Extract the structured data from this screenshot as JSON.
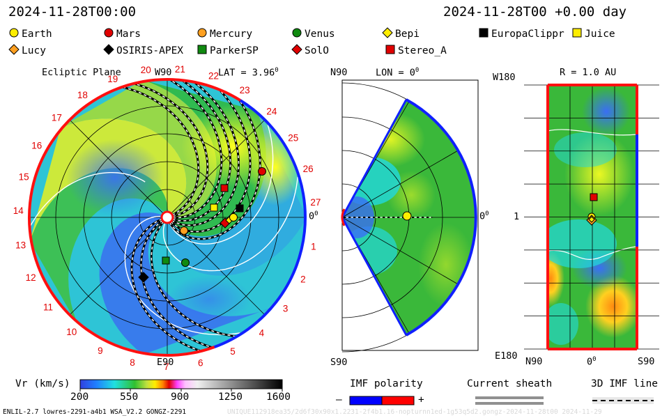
{
  "header": {
    "date_left": "2024-11-28T00:00",
    "date_right": "2024-11-28T00 +0.00 day"
  },
  "legend": [
    {
      "name": "Earth",
      "shape": "circle",
      "color": "#ffee00"
    },
    {
      "name": "Mars",
      "shape": "circle",
      "color": "#e00000"
    },
    {
      "name": "Mercury",
      "shape": "circle",
      "color": "#ffa020"
    },
    {
      "name": "Venus",
      "shape": "circle",
      "color": "#108a10"
    },
    {
      "name": "Bepi",
      "shape": "diamond",
      "color": "#ffee00"
    },
    {
      "name": "EuropaClippr",
      "shape": "square",
      "color": "#000000"
    },
    {
      "name": "Juice",
      "shape": "square",
      "color": "#ffee00"
    },
    {
      "name": "Lucy",
      "shape": "diamond",
      "color": "#ffa020"
    },
    {
      "name": "OSIRIS-APEX",
      "shape": "diamond",
      "color": "#000000"
    },
    {
      "name": "ParkerSP",
      "shape": "square",
      "color": "#108a10"
    },
    {
      "name": "SolO",
      "shape": "diamond",
      "color": "#e00000"
    },
    {
      "name": "Stereo_A",
      "shape": "square",
      "color": "#e00000"
    }
  ],
  "panel1": {
    "title": "Ecliptic Plane",
    "w90": "W90",
    "lat": "LAT = 3.96",
    "lat_sup": "0",
    "e90": "E90",
    "zero": "0",
    "zero_sup": "0",
    "sectors": [
      {
        "t": "1"
      },
      {
        "t": "2"
      },
      {
        "t": "3"
      },
      {
        "t": "4"
      },
      {
        "t": "5"
      },
      {
        "t": "6"
      },
      {
        "t": "7"
      },
      {
        "t": "8"
      },
      {
        "t": "9"
      },
      {
        "t": "10"
      },
      {
        "t": "11"
      },
      {
        "t": "12"
      },
      {
        "t": "13"
      },
      {
        "t": "14"
      },
      {
        "t": "15"
      },
      {
        "t": "16"
      },
      {
        "t": "17"
      },
      {
        "t": "18"
      },
      {
        "t": "19"
      },
      {
        "t": "20"
      },
      {
        "t": "21"
      },
      {
        "t": "22"
      },
      {
        "t": "23"
      },
      {
        "t": "24"
      },
      {
        "t": "25"
      },
      {
        "t": "26"
      },
      {
        "t": "27"
      }
    ]
  },
  "panel2": {
    "n90": "N90",
    "lon": "LON = 0",
    "lon_sup": "0",
    "s90": "S90",
    "zero": "0",
    "zero_sup": "0"
  },
  "panel3": {
    "w180": "W180",
    "r": "R = 1.0 AU",
    "one": "1",
    "e180": "E180",
    "n90": "N90",
    "zero": "0",
    "zero_sup": "0",
    "s90": "S90"
  },
  "colorbar": {
    "label": "Vr (km/s)",
    "ticks": [
      "200",
      "550",
      "900",
      "1250",
      "1600"
    ]
  },
  "imf": {
    "label": "IMF polarity",
    "minus": "–",
    "plus": "+",
    "color_neg": "#0000ff",
    "color_pos": "#ff0000"
  },
  "sheath": {
    "label": "Current sheath"
  },
  "line3d": {
    "label": "3D IMF line"
  },
  "footer": {
    "left": "ENLIL-2.7 lowres-2291-a4b1 WSA_V2.2 GONGZ-2291",
    "right": "UNIQUE112918ea35/2d6f30x90x1.2231-2f4b1.16-nopturnn1ed-1g53q5d2.gongz-2024-11-28t00   2024-11-29"
  }
}
